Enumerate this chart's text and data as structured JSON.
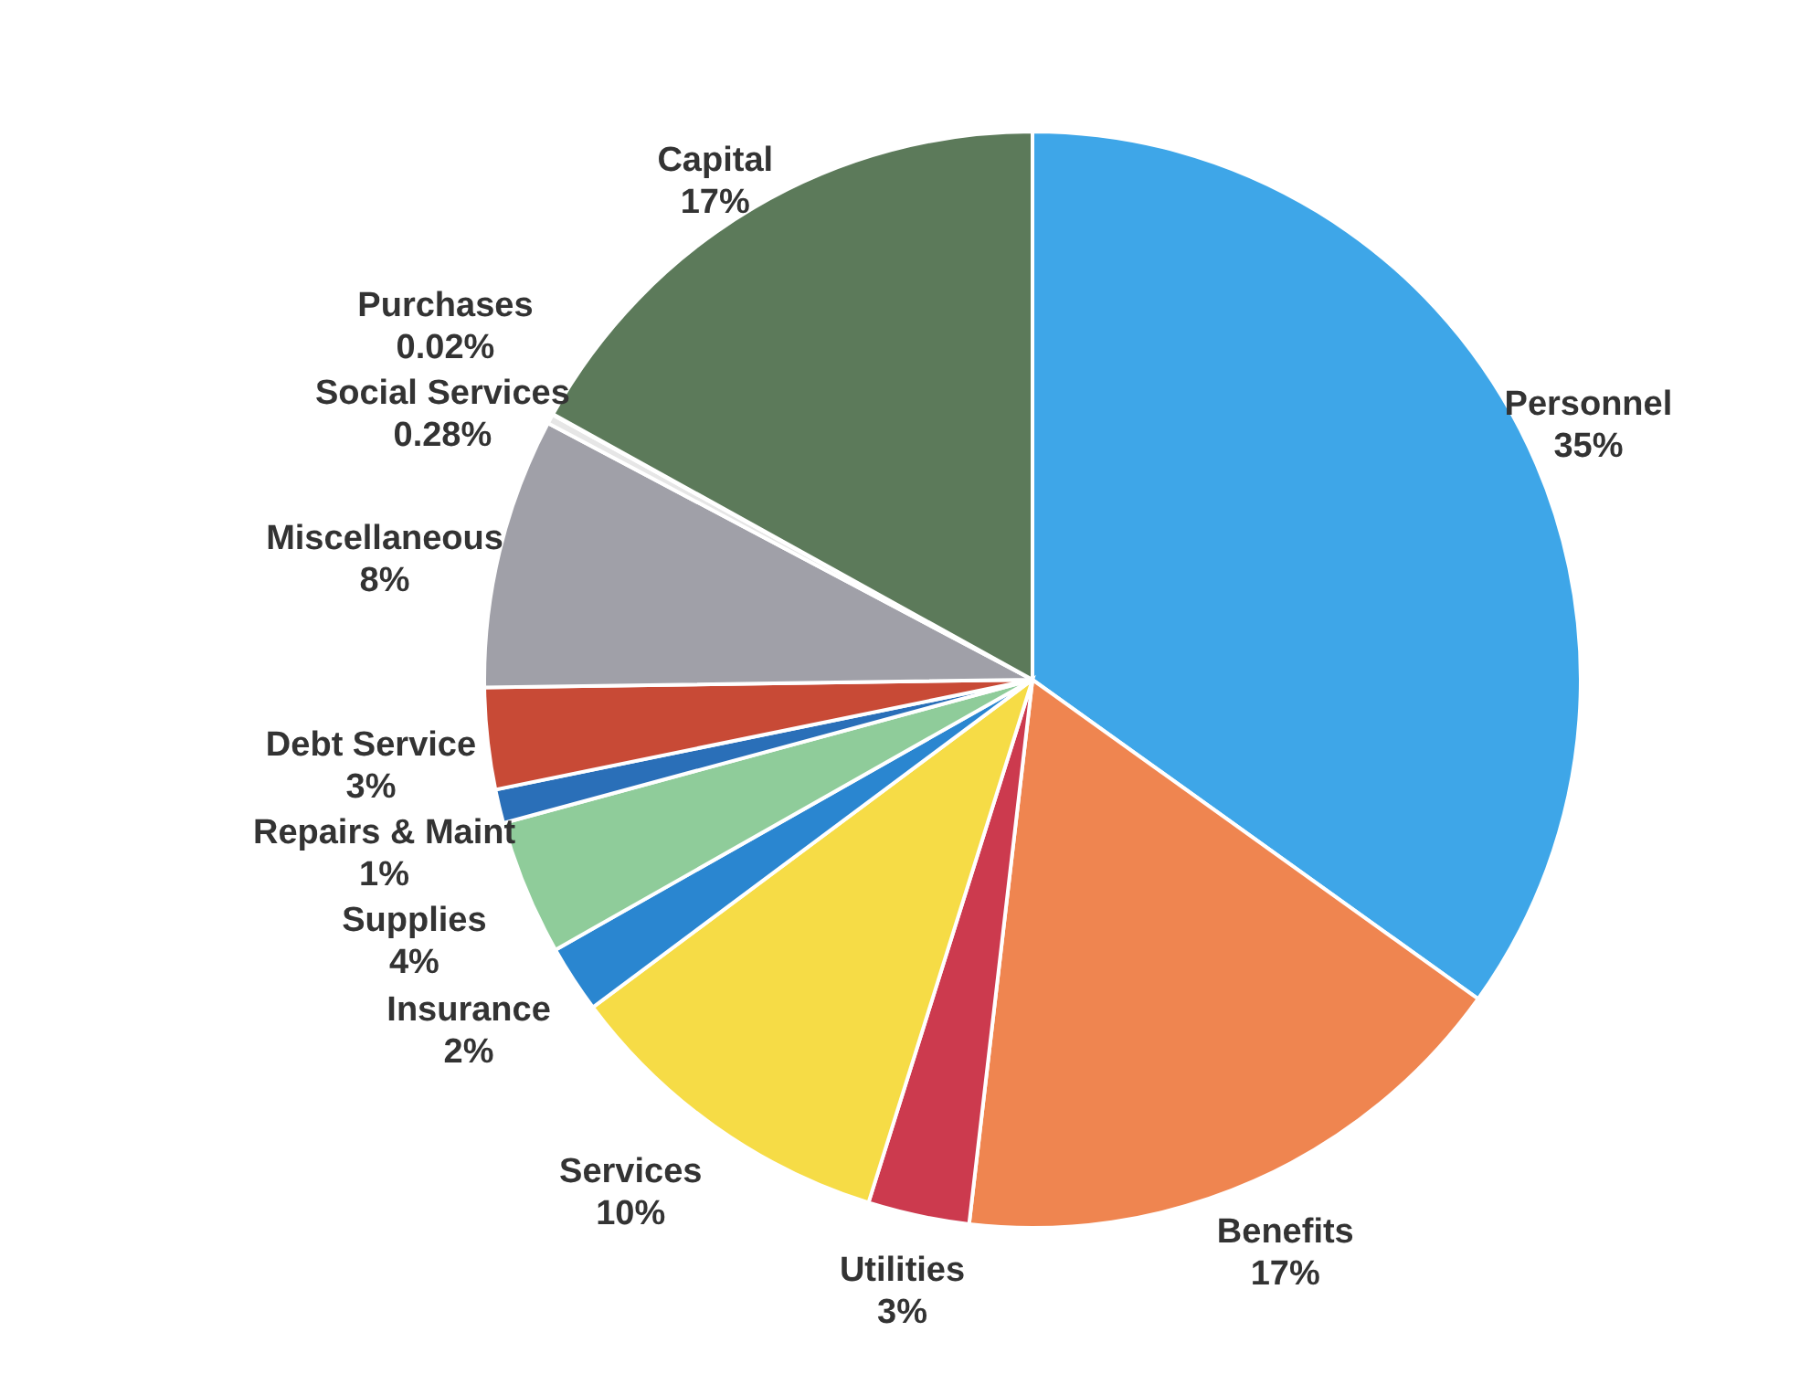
{
  "chart_data": {
    "type": "pie",
    "categories": [
      "Personnel",
      "Benefits",
      "Utilities",
      "Services",
      "Insurance",
      "Supplies",
      "Repairs & Maint",
      "Debt Service",
      "Miscellaneous",
      "Social Services",
      "Purchases",
      "Capital"
    ],
    "values": [
      35,
      17,
      3,
      10,
      2,
      4,
      1,
      3,
      8,
      0.28,
      0.02,
      17
    ],
    "value_labels": [
      "35%",
      "17%",
      "3%",
      "10%",
      "2%",
      "4%",
      "1%",
      "3%",
      "8%",
      "0.28%",
      "0.02%",
      "17%"
    ],
    "colors": [
      "#3ea6e8",
      "#ef8550",
      "#cc3a4e",
      "#f6dc46",
      "#2a86d0",
      "#8fcc9a",
      "#2a6fb8",
      "#c84a36",
      "#a0a0a8",
      "#e6e6e6",
      "#c8c8c8",
      "#5c7a5a"
    ]
  }
}
